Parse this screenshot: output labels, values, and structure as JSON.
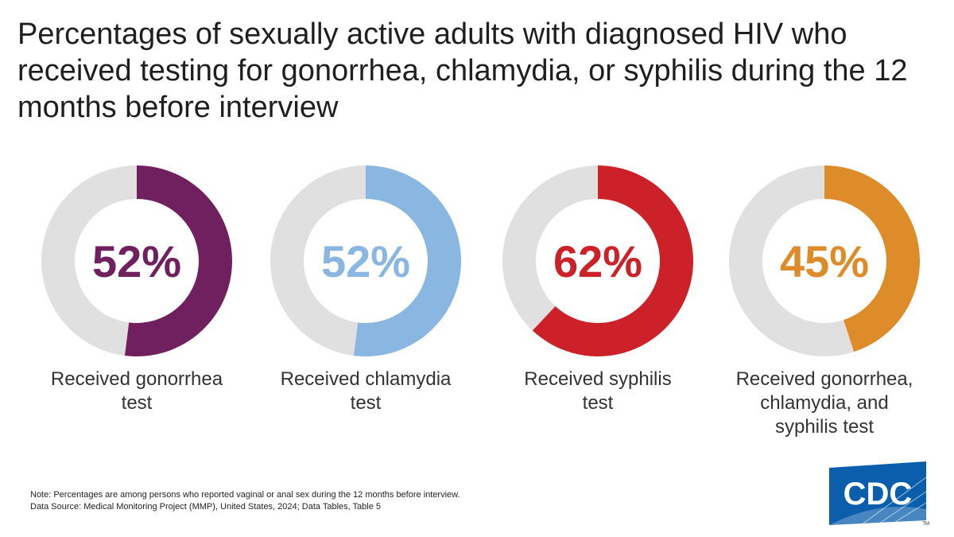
{
  "title": "Percentages of sexually active adults with diagnosed HIV who received testing for gonorrhea, chlamydia, or syphilis during the 12 months before interview",
  "chart_data": [
    {
      "type": "pie",
      "variant": "donut",
      "value": 52,
      "value_label": "52%",
      "label_lines": [
        "Received gonorrhea",
        "test"
      ],
      "color": "#71205f",
      "remainder_color": "#e0e0e0"
    },
    {
      "type": "pie",
      "variant": "donut",
      "value": 52,
      "value_label": "52%",
      "label_lines": [
        "Received chlamydia",
        "test"
      ],
      "color": "#8ab6e2",
      "remainder_color": "#e0e0e0"
    },
    {
      "type": "pie",
      "variant": "donut",
      "value": 62,
      "value_label": "62%",
      "label_lines": [
        "Received syphilis",
        "test"
      ],
      "color": "#cc2128",
      "remainder_color": "#e0e0e0"
    },
    {
      "type": "pie",
      "variant": "donut",
      "value": 45,
      "value_label": "45%",
      "label_lines": [
        "Received gonorrhea,",
        "chlamydia, and",
        "syphilis test"
      ],
      "color": "#de8b2a",
      "remainder_color": "#e0e0e0"
    }
  ],
  "notes": {
    "note": "Note: Percentages are among persons who reported vaginal or anal sex during the 12 months before interview.",
    "source": "Data Source: Medical Monitoring Project (MMP), United States, 2024; Data Tables, Table 5"
  },
  "logo": {
    "text": "CDC",
    "mark": "TM",
    "color": "#0a5eab"
  }
}
